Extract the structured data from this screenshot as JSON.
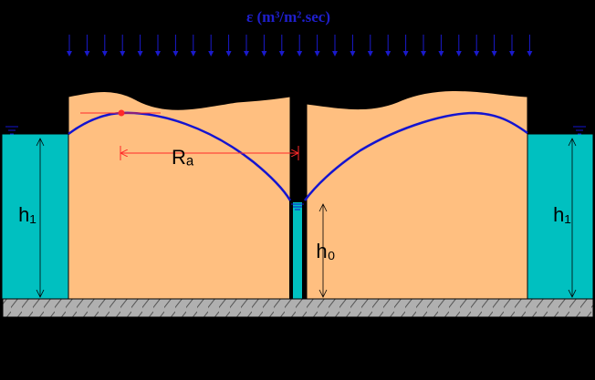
{
  "diagram": {
    "rain_label": "ε (m³/m².sec)",
    "radius_label": "Rₐ",
    "h1_left_label": "h₁",
    "h1_right_label": "h₁",
    "h0_label": "h₀",
    "colors": {
      "background": "#000000",
      "soil": "#ffbf80",
      "water": "#00c0c0",
      "water_table": "#1414d0",
      "rain_arrows": "#1a1acc",
      "dimension_lines": "#ff2a2a",
      "bedrock": "#b0b0b0"
    }
  }
}
